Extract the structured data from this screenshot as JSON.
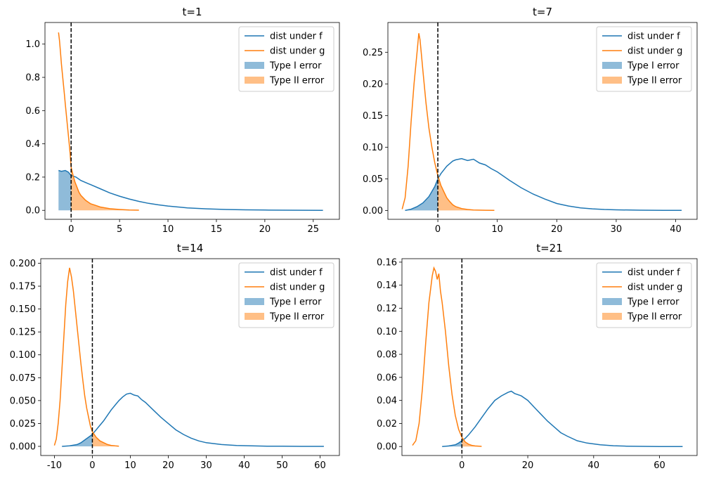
{
  "colors": {
    "f": "#1f77b4",
    "g": "#ff7f0e",
    "threshold": "#000000"
  },
  "chart_data": [
    {
      "type": "line",
      "title": "t=1",
      "xlim": [
        -2.7,
        27.7
      ],
      "ylim": [
        -0.054,
        1.13
      ],
      "xticks": [
        0,
        5,
        10,
        15,
        20,
        25
      ],
      "yticks": [
        0.0,
        0.2,
        0.4,
        0.6,
        0.8,
        1.0
      ],
      "ytick_decimals": 1,
      "threshold": 0,
      "legend": {
        "position": "upper right",
        "entries": [
          "dist under f",
          "dist under g",
          "Type I error",
          "Type II error"
        ]
      },
      "series": [
        {
          "name": "dist under f",
          "x": [
            -1.3,
            -1,
            -0.6,
            -0.3,
            0,
            0.5,
            1,
            2,
            3,
            4,
            5,
            6,
            7,
            8,
            9,
            10,
            12,
            14,
            16,
            18,
            20,
            22,
            24,
            26
          ],
          "y": [
            0.24,
            0.235,
            0.24,
            0.23,
            0.21,
            0.2,
            0.18,
            0.155,
            0.13,
            0.105,
            0.085,
            0.068,
            0.054,
            0.042,
            0.033,
            0.026,
            0.015,
            0.009,
            0.005,
            0.003,
            0.002,
            0.001,
            0.0005,
            0.0003
          ]
        },
        {
          "name": "dist under g",
          "x": [
            -1.3,
            -1.2,
            -1.1,
            -1,
            -0.9,
            -0.8,
            -0.7,
            -0.6,
            -0.5,
            -0.4,
            -0.3,
            -0.2,
            -0.1,
            0,
            0.2,
            0.4,
            0.6,
            0.8,
            1,
            1.5,
            2,
            2.5,
            3,
            4,
            5,
            6,
            7
          ],
          "y": [
            1.07,
            1.02,
            0.95,
            0.88,
            0.82,
            0.76,
            0.7,
            0.64,
            0.58,
            0.52,
            0.46,
            0.4,
            0.34,
            0.26,
            0.21,
            0.17,
            0.14,
            0.11,
            0.09,
            0.06,
            0.04,
            0.03,
            0.02,
            0.01,
            0.005,
            0.002,
            0.001
          ]
        }
      ]
    },
    {
      "type": "line",
      "title": "t=7",
      "xlim": [
        -8.4,
        43.6
      ],
      "ylim": [
        -0.014,
        0.297
      ],
      "xticks": [
        0,
        10,
        20,
        30,
        40
      ],
      "yticks": [
        0.0,
        0.05,
        0.1,
        0.15,
        0.2,
        0.25
      ],
      "ytick_decimals": 2,
      "threshold": 0,
      "legend": {
        "position": "upper right",
        "entries": [
          "dist under f",
          "dist under g",
          "Type I error",
          "Type II error"
        ]
      },
      "series": [
        {
          "name": "dist under f",
          "x": [
            -5.5,
            -4.5,
            -3.5,
            -2.5,
            -1.5,
            -0.5,
            0,
            0.5,
            1,
            1.5,
            2,
            2.5,
            3,
            4,
            5,
            6,
            7,
            8,
            9,
            10,
            12,
            14,
            16,
            18,
            20,
            22,
            24,
            26,
            28,
            30,
            34,
            38,
            41
          ],
          "y": [
            0.0,
            0.002,
            0.006,
            0.012,
            0.022,
            0.038,
            0.05,
            0.058,
            0.064,
            0.07,
            0.074,
            0.078,
            0.08,
            0.082,
            0.079,
            0.081,
            0.075,
            0.072,
            0.066,
            0.061,
            0.048,
            0.036,
            0.026,
            0.018,
            0.011,
            0.007,
            0.004,
            0.0025,
            0.0015,
            0.001,
            0.0004,
            0.0002,
            0.0001
          ]
        },
        {
          "name": "dist under g",
          "x": [
            -6,
            -5.5,
            -5,
            -4.5,
            -4,
            -3.5,
            -3.2,
            -3,
            -2.8,
            -2.5,
            -2,
            -1.5,
            -1,
            -0.5,
            0,
            0.5,
            1,
            1.5,
            2,
            2.5,
            3,
            4,
            5,
            6,
            8,
            9.5
          ],
          "y": [
            0.002,
            0.02,
            0.07,
            0.14,
            0.2,
            0.25,
            0.28,
            0.27,
            0.25,
            0.22,
            0.17,
            0.13,
            0.1,
            0.075,
            0.055,
            0.04,
            0.03,
            0.02,
            0.014,
            0.009,
            0.006,
            0.003,
            0.0015,
            0.0008,
            0.0003,
            0.0001
          ]
        }
      ]
    },
    {
      "type": "line",
      "title": "t=14",
      "xlim": [
        -13.6,
        65.1
      ],
      "ylim": [
        -0.01,
        0.205
      ],
      "xticks": [
        -10,
        0,
        10,
        20,
        30,
        40,
        50,
        60
      ],
      "yticks": [
        0.0,
        0.025,
        0.05,
        0.075,
        0.1,
        0.125,
        0.15,
        0.175,
        0.2
      ],
      "ytick_decimals": 3,
      "threshold": 0,
      "legend": {
        "position": "upper right",
        "entries": [
          "dist under f",
          "dist under g",
          "Type I error",
          "Type II error"
        ]
      },
      "series": [
        {
          "name": "dist under f",
          "x": [
            -8,
            -6,
            -4,
            -3,
            -2,
            -1,
            0,
            1,
            2,
            3,
            4,
            5,
            6,
            7,
            8,
            9,
            10,
            11,
            12,
            13,
            14,
            16,
            18,
            20,
            22,
            24,
            26,
            28,
            30,
            34,
            38,
            42,
            46,
            50,
            55,
            61
          ],
          "y": [
            0.0,
            0.0005,
            0.002,
            0.004,
            0.007,
            0.01,
            0.013,
            0.018,
            0.023,
            0.028,
            0.034,
            0.04,
            0.045,
            0.05,
            0.054,
            0.057,
            0.058,
            0.056,
            0.055,
            0.051,
            0.048,
            0.04,
            0.032,
            0.025,
            0.018,
            0.013,
            0.009,
            0.006,
            0.004,
            0.002,
            0.001,
            0.0005,
            0.0002,
            0.0001,
            0.0,
            0.0
          ]
        },
        {
          "name": "dist under g",
          "x": [
            -10,
            -9.5,
            -9,
            -8.5,
            -8,
            -7.5,
            -7,
            -6.5,
            -6,
            -5.5,
            -5,
            -4.5,
            -4,
            -3.5,
            -3,
            -2.5,
            -2,
            -1.5,
            -1,
            -0.5,
            0,
            1,
            2,
            3,
            4,
            5,
            6,
            7
          ],
          "y": [
            0.001,
            0.008,
            0.025,
            0.05,
            0.085,
            0.12,
            0.155,
            0.18,
            0.195,
            0.185,
            0.17,
            0.15,
            0.13,
            0.11,
            0.09,
            0.072,
            0.055,
            0.042,
            0.032,
            0.022,
            0.016,
            0.01,
            0.006,
            0.004,
            0.002,
            0.001,
            0.0005,
            0.0002
          ]
        }
      ]
    },
    {
      "type": "line",
      "title": "t=21",
      "xlim": [
        -18.2,
        71.4
      ],
      "ylim": [
        -0.0078,
        0.163
      ],
      "xticks": [
        0,
        20,
        40,
        60
      ],
      "yticks": [
        0.0,
        0.02,
        0.04,
        0.06,
        0.08,
        0.1,
        0.12,
        0.14,
        0.16
      ],
      "ytick_decimals": 2,
      "threshold": 0,
      "legend": {
        "position": "upper right",
        "entries": [
          "dist under f",
          "dist under g",
          "Type I error",
          "Type II error"
        ]
      },
      "series": [
        {
          "name": "dist under f",
          "x": [
            -6,
            -4,
            -2,
            -1,
            0,
            1,
            2,
            4,
            6,
            8,
            10,
            12,
            14,
            15,
            16,
            18,
            20,
            22,
            24,
            26,
            28,
            30,
            32,
            35,
            38,
            42,
            46,
            50,
            55,
            60,
            67
          ],
          "y": [
            0.0,
            0.0005,
            0.0015,
            0.003,
            0.005,
            0.007,
            0.01,
            0.017,
            0.025,
            0.033,
            0.04,
            0.044,
            0.047,
            0.048,
            0.046,
            0.044,
            0.04,
            0.034,
            0.028,
            0.022,
            0.017,
            0.012,
            0.009,
            0.005,
            0.003,
            0.0015,
            0.0007,
            0.0003,
            0.0001,
            0.0,
            0.0
          ]
        },
        {
          "name": "dist under g",
          "x": [
            -15,
            -14,
            -13,
            -12,
            -11,
            -10,
            -9,
            -8.5,
            -8,
            -7.5,
            -7,
            -6.5,
            -6,
            -5,
            -4,
            -3,
            -2,
            -1,
            0,
            1,
            2,
            3,
            4,
            6
          ],
          "y": [
            0.001,
            0.005,
            0.02,
            0.05,
            0.09,
            0.125,
            0.148,
            0.155,
            0.152,
            0.145,
            0.15,
            0.135,
            0.125,
            0.1,
            0.07,
            0.045,
            0.027,
            0.015,
            0.008,
            0.004,
            0.002,
            0.001,
            0.0005,
            0.0001
          ]
        }
      ]
    }
  ]
}
